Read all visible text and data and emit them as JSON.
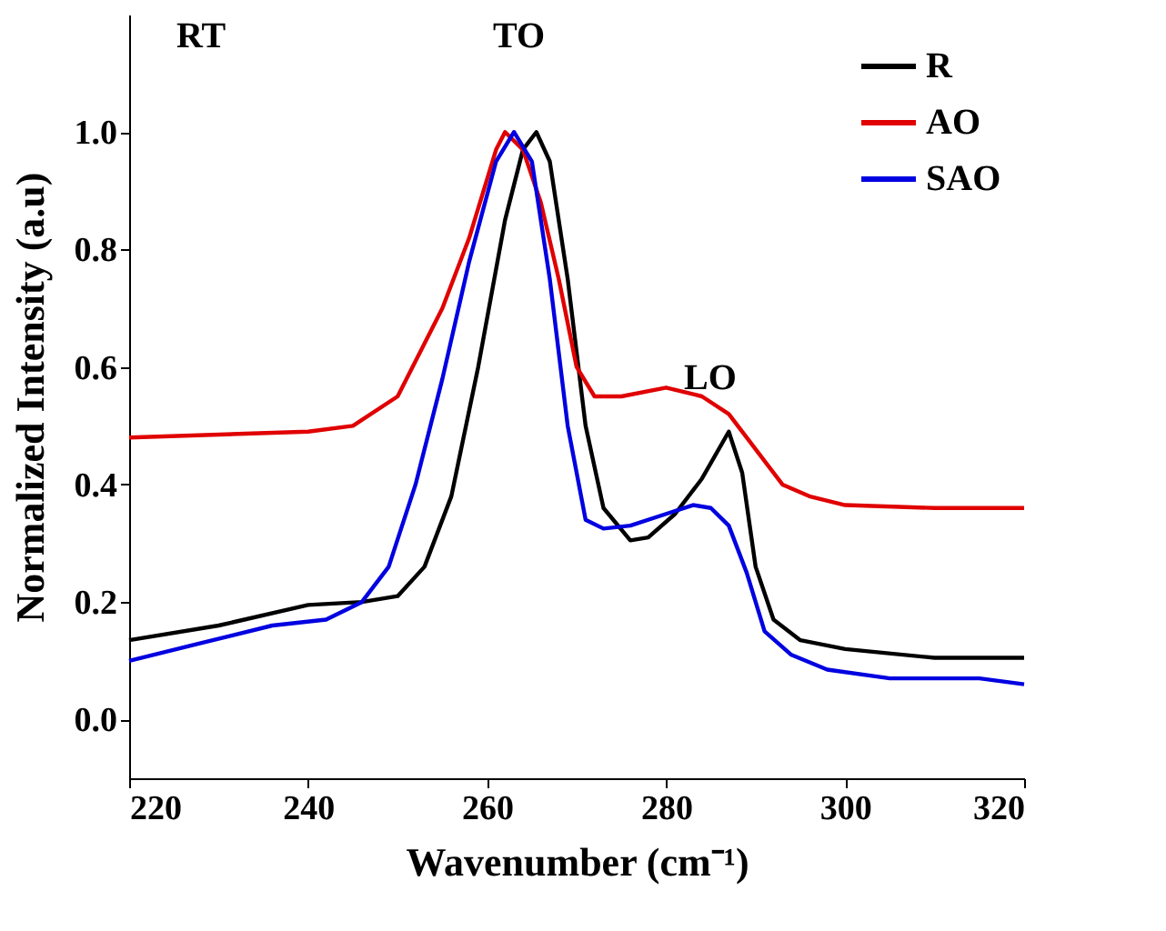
{
  "chart_data": {
    "type": "line",
    "xlabel": "Wavenumber (cm⁻¹)",
    "ylabel": "Normalized Intensity (a.u)",
    "xlim": [
      220,
      320
    ],
    "xticks": [
      220,
      240,
      260,
      280,
      300,
      320
    ],
    "ylim": [
      -0.1,
      1.2
    ],
    "yticks": [
      {
        "value": 0,
        "label": "0.0"
      },
      {
        "value": 0.2,
        "label": "0.2"
      },
      {
        "value": 0.4,
        "label": "0.4"
      },
      {
        "value": 0.6,
        "label": "0.6"
      },
      {
        "value": 0.8,
        "label": "0.8"
      },
      {
        "value": 1,
        "label": "1.0"
      }
    ],
    "legend": "top right",
    "grid": false,
    "marker": "none",
    "line_style": "solid",
    "annotations": [
      "RT",
      "TO",
      "LO"
    ],
    "series": [
      {
        "name": "R",
        "color": "#000000",
        "x": [
          220,
          230,
          240,
          246,
          250,
          253,
          256,
          259,
          262,
          264,
          265.5,
          267,
          269,
          271,
          273,
          276,
          278,
          281,
          284,
          287,
          288.5,
          290,
          292,
          295,
          300,
          310,
          320
        ],
        "values": [
          0.135,
          0.16,
          0.195,
          0.2,
          0.21,
          0.26,
          0.38,
          0.6,
          0.85,
          0.97,
          1.0,
          0.95,
          0.75,
          0.5,
          0.36,
          0.305,
          0.31,
          0.35,
          0.41,
          0.49,
          0.42,
          0.26,
          0.17,
          0.135,
          0.12,
          0.105,
          0.105
        ]
      },
      {
        "name": "AO",
        "color": "#e00000",
        "x": [
          220,
          240,
          245,
          250,
          255,
          258,
          261,
          262,
          264,
          266,
          268,
          270,
          272,
          275,
          280,
          284,
          287,
          290,
          293,
          296,
          300,
          310,
          320
        ],
        "values": [
          0.48,
          0.49,
          0.5,
          0.55,
          0.7,
          0.82,
          0.97,
          1.0,
          0.97,
          0.88,
          0.75,
          0.6,
          0.55,
          0.55,
          0.565,
          0.55,
          0.52,
          0.46,
          0.4,
          0.38,
          0.365,
          0.36,
          0.36
        ]
      },
      {
        "name": "SAO",
        "color": "#0000e0",
        "x": [
          220,
          228,
          236,
          242,
          246,
          249,
          252,
          255,
          258,
          261,
          263,
          265,
          267,
          269,
          271,
          273,
          276,
          280,
          283,
          285,
          287,
          289,
          291,
          294,
          298,
          305,
          315,
          320
        ],
        "values": [
          0.1,
          0.13,
          0.16,
          0.17,
          0.2,
          0.26,
          0.4,
          0.58,
          0.78,
          0.95,
          1.0,
          0.95,
          0.75,
          0.5,
          0.34,
          0.325,
          0.33,
          0.35,
          0.365,
          0.36,
          0.33,
          0.25,
          0.15,
          0.11,
          0.085,
          0.07,
          0.07,
          0.06
        ]
      }
    ]
  }
}
